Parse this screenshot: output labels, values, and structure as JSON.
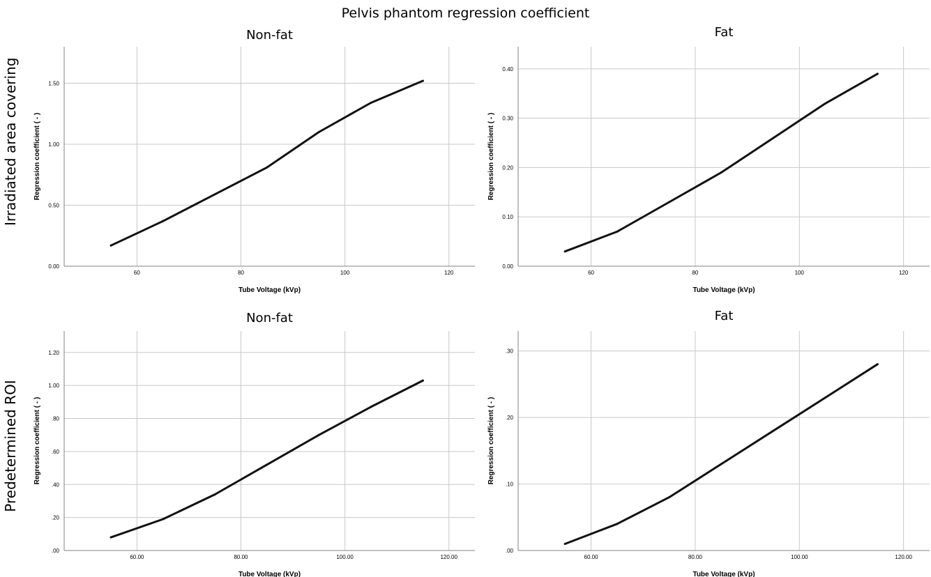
{
  "figure_title": "Pelvis phantom regression coefficient",
  "row_labels": [
    "Irradiated area covering",
    "Predetermined ROI"
  ],
  "chart_data": [
    {
      "type": "line",
      "title": "Non-fat",
      "xlabel": "Tube Voltage (kVp)",
      "ylabel": "Regression coefficient ( - )",
      "xlim": [
        46,
        125
      ],
      "ylim": [
        0,
        1.8
      ],
      "xticks": [
        60,
        80,
        100,
        120
      ],
      "xtick_labels": [
        "60",
        "80",
        "100",
        "120"
      ],
      "yticks": [
        0,
        0.5,
        1.0,
        1.5
      ],
      "ytick_labels": [
        "0.00",
        "0.50",
        "1.00",
        "1.50"
      ],
      "grid": true,
      "x": [
        55,
        65,
        75,
        85,
        95,
        105,
        115
      ],
      "y": [
        0.17,
        0.37,
        0.59,
        0.81,
        1.1,
        1.34,
        1.52
      ]
    },
    {
      "type": "line",
      "title": "Fat",
      "xlabel": "Tube Voltage (kVp)",
      "ylabel": "Regression coefficient ( - )",
      "xlim": [
        46,
        125
      ],
      "ylim": [
        0,
        0.445
      ],
      "xticks": [
        60,
        80,
        100,
        120
      ],
      "xtick_labels": [
        "60",
        "80",
        "100",
        "120"
      ],
      "yticks": [
        0,
        0.1,
        0.2,
        0.3,
        0.4
      ],
      "ytick_labels": [
        "0.00",
        "0.10",
        "0.20",
        "0.30",
        "0.40"
      ],
      "grid": true,
      "x": [
        55,
        65,
        75,
        85,
        95,
        105,
        115
      ],
      "y": [
        0.03,
        0.07,
        0.13,
        0.19,
        0.26,
        0.33,
        0.39
      ]
    },
    {
      "type": "line",
      "title": "Non-fat",
      "xlabel": "Tube Voltage (kVp)",
      "ylabel": "Regression coefficient ( - )",
      "xlim": [
        46,
        125
      ],
      "ylim": [
        0,
        1.33
      ],
      "xticks": [
        60,
        80,
        100,
        120
      ],
      "xtick_labels": [
        "60.00",
        "80.00",
        "100.00",
        "120.00"
      ],
      "yticks": [
        0,
        0.2,
        0.4,
        0.6,
        0.8,
        1.0,
        1.2
      ],
      "ytick_labels": [
        ".00",
        ".20",
        ".40",
        ".60",
        ".80",
        "1.00",
        "1.20"
      ],
      "grid": true,
      "x": [
        55,
        65,
        75,
        85,
        95,
        105,
        115
      ],
      "y": [
        0.08,
        0.19,
        0.34,
        0.52,
        0.7,
        0.87,
        1.03
      ]
    },
    {
      "type": "line",
      "title": "Fat",
      "xlabel": "Tube Voltage (kVp)",
      "ylabel": "Regression coefficient ( - )",
      "xlim": [
        46,
        125
      ],
      "ylim": [
        0,
        0.33
      ],
      "xticks": [
        60,
        80,
        100,
        120
      ],
      "xtick_labels": [
        "60.00",
        "80.00",
        "100.00",
        "120.00"
      ],
      "yticks": [
        0,
        0.1,
        0.2,
        0.3
      ],
      "ytick_labels": [
        ".00",
        ".10",
        ".20",
        ".30"
      ],
      "grid": true,
      "x": [
        55,
        65,
        75,
        85,
        95,
        105,
        115
      ],
      "y": [
        0.01,
        0.04,
        0.08,
        0.13,
        0.18,
        0.23,
        0.28
      ]
    }
  ]
}
